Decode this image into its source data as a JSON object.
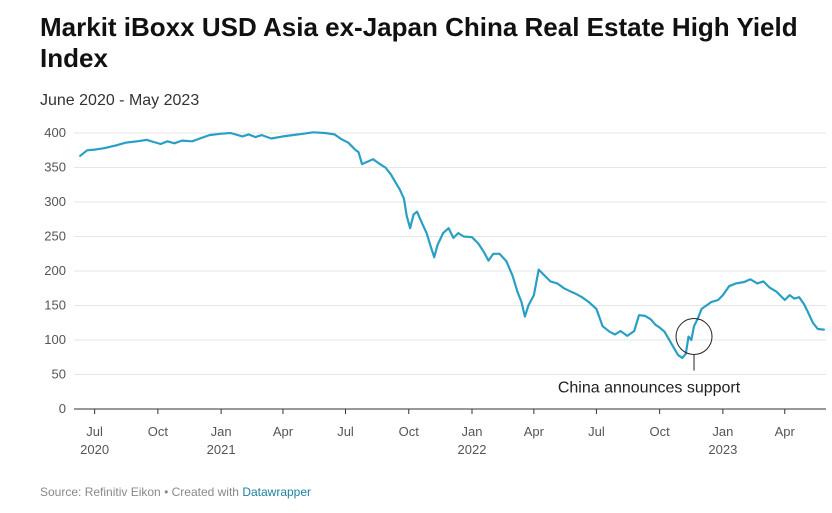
{
  "header": {
    "title": "Markit iBoxx USD Asia ex-Japan China Real Estate High Yield Index",
    "subtitle": "June 2020 - May 2023"
  },
  "footer": {
    "source": "Source: Refinitiv Eikon",
    "separator": " • ",
    "created_with": "Created with ",
    "tool": "Datawrapper"
  },
  "colors": {
    "line": "#2a9fc5",
    "grid": "#e6e6e6",
    "axis": "#333333",
    "annotation": "#222222"
  },
  "chart_data": {
    "type": "line",
    "title": "Markit iBoxx USD Asia ex-Japan China Real Estate High Yield Index",
    "subtitle": "June 2020 - May 2023",
    "xlabel": "",
    "ylabel": "",
    "ylim": [
      0,
      400
    ],
    "xlim": [
      "2020-06-01",
      "2023-05-31"
    ],
    "yticks": [
      0,
      50,
      100,
      150,
      200,
      250,
      300,
      350,
      400
    ],
    "grid": true,
    "xticks": [
      {
        "date": "2020-07-01",
        "label": "Jul",
        "year": "2020"
      },
      {
        "date": "2020-10-01",
        "label": "Oct",
        "year": ""
      },
      {
        "date": "2021-01-01",
        "label": "Jan",
        "year": "2021"
      },
      {
        "date": "2021-04-01",
        "label": "Apr",
        "year": ""
      },
      {
        "date": "2021-07-01",
        "label": "Jul",
        "year": ""
      },
      {
        "date": "2021-10-01",
        "label": "Oct",
        "year": ""
      },
      {
        "date": "2022-01-01",
        "label": "Jan",
        "year": "2022"
      },
      {
        "date": "2022-04-01",
        "label": "Apr",
        "year": ""
      },
      {
        "date": "2022-07-01",
        "label": "Jul",
        "year": ""
      },
      {
        "date": "2022-10-01",
        "label": "Oct",
        "year": ""
      },
      {
        "date": "2023-01-01",
        "label": "Jan",
        "year": "2023"
      },
      {
        "date": "2023-04-01",
        "label": "Apr",
        "year": ""
      }
    ],
    "series": [
      {
        "points": [
          [
            "2020-06-10",
            367
          ],
          [
            "2020-06-20",
            375
          ],
          [
            "2020-07-01",
            376
          ],
          [
            "2020-07-15",
            378
          ],
          [
            "2020-08-01",
            382
          ],
          [
            "2020-08-15",
            386
          ],
          [
            "2020-09-01",
            388
          ],
          [
            "2020-09-15",
            390
          ],
          [
            "2020-09-25",
            387
          ],
          [
            "2020-10-05",
            384
          ],
          [
            "2020-10-15",
            388
          ],
          [
            "2020-10-25",
            385
          ],
          [
            "2020-11-05",
            389
          ],
          [
            "2020-11-20",
            388
          ],
          [
            "2020-12-01",
            392
          ],
          [
            "2020-12-15",
            397
          ],
          [
            "2021-01-01",
            399
          ],
          [
            "2021-01-15",
            400
          ],
          [
            "2021-02-01",
            395
          ],
          [
            "2021-02-10",
            398
          ],
          [
            "2021-02-20",
            394
          ],
          [
            "2021-03-01",
            397
          ],
          [
            "2021-03-15",
            392
          ],
          [
            "2021-04-01",
            395
          ],
          [
            "2021-04-15",
            397
          ],
          [
            "2021-05-01",
            399
          ],
          [
            "2021-05-15",
            401
          ],
          [
            "2021-06-01",
            400
          ],
          [
            "2021-06-15",
            398
          ],
          [
            "2021-06-25",
            391
          ],
          [
            "2021-07-05",
            386
          ],
          [
            "2021-07-15",
            376
          ],
          [
            "2021-07-20",
            372
          ],
          [
            "2021-07-25",
            355
          ],
          [
            "2021-08-01",
            358
          ],
          [
            "2021-08-10",
            362
          ],
          [
            "2021-08-20",
            355
          ],
          [
            "2021-08-28",
            350
          ],
          [
            "2021-09-05",
            340
          ],
          [
            "2021-09-12",
            328
          ],
          [
            "2021-09-18",
            318
          ],
          [
            "2021-09-24",
            305
          ],
          [
            "2021-09-28",
            280
          ],
          [
            "2021-10-03",
            262
          ],
          [
            "2021-10-08",
            282
          ],
          [
            "2021-10-13",
            286
          ],
          [
            "2021-10-20",
            270
          ],
          [
            "2021-10-27",
            255
          ],
          [
            "2021-11-02",
            235
          ],
          [
            "2021-11-07",
            220
          ],
          [
            "2021-11-12",
            238
          ],
          [
            "2021-11-20",
            255
          ],
          [
            "2021-11-28",
            262
          ],
          [
            "2021-12-05",
            248
          ],
          [
            "2021-12-12",
            255
          ],
          [
            "2021-12-20",
            250
          ],
          [
            "2022-01-01",
            249
          ],
          [
            "2022-01-10",
            240
          ],
          [
            "2022-01-18",
            228
          ],
          [
            "2022-01-25",
            215
          ],
          [
            "2022-02-01",
            225
          ],
          [
            "2022-02-10",
            225
          ],
          [
            "2022-02-20",
            214
          ],
          [
            "2022-03-01",
            193
          ],
          [
            "2022-03-08",
            170
          ],
          [
            "2022-03-14",
            155
          ],
          [
            "2022-03-19",
            134
          ],
          [
            "2022-03-24",
            150
          ],
          [
            "2022-04-01",
            165
          ],
          [
            "2022-04-08",
            202
          ],
          [
            "2022-04-15",
            195
          ],
          [
            "2022-04-25",
            185
          ],
          [
            "2022-05-05",
            182
          ],
          [
            "2022-05-15",
            175
          ],
          [
            "2022-05-25",
            170
          ],
          [
            "2022-06-01",
            167
          ],
          [
            "2022-06-10",
            162
          ],
          [
            "2022-06-20",
            155
          ],
          [
            "2022-07-01",
            145
          ],
          [
            "2022-07-10",
            120
          ],
          [
            "2022-07-20",
            112
          ],
          [
            "2022-07-28",
            108
          ],
          [
            "2022-08-05",
            113
          ],
          [
            "2022-08-15",
            106
          ],
          [
            "2022-08-25",
            113
          ],
          [
            "2022-09-01",
            136
          ],
          [
            "2022-09-10",
            135
          ],
          [
            "2022-09-18",
            130
          ],
          [
            "2022-09-25",
            122
          ],
          [
            "2022-10-01",
            118
          ],
          [
            "2022-10-08",
            112
          ],
          [
            "2022-10-15",
            100
          ],
          [
            "2022-10-22",
            88
          ],
          [
            "2022-10-28",
            78
          ],
          [
            "2022-11-03",
            74
          ],
          [
            "2022-11-08",
            80
          ],
          [
            "2022-11-12",
            105
          ],
          [
            "2022-11-16",
            100
          ],
          [
            "2022-11-20",
            120
          ],
          [
            "2022-11-25",
            130
          ],
          [
            "2022-12-01",
            145
          ],
          [
            "2022-12-08",
            150
          ],
          [
            "2022-12-15",
            155
          ],
          [
            "2022-12-25",
            158
          ],
          [
            "2023-01-01",
            165
          ],
          [
            "2023-01-10",
            178
          ],
          [
            "2023-01-20",
            182
          ],
          [
            "2023-02-01",
            184
          ],
          [
            "2023-02-10",
            188
          ],
          [
            "2023-02-20",
            182
          ],
          [
            "2023-03-01",
            185
          ],
          [
            "2023-03-10",
            176
          ],
          [
            "2023-03-20",
            170
          ],
          [
            "2023-03-27",
            163
          ],
          [
            "2023-04-01",
            158
          ],
          [
            "2023-04-08",
            165
          ],
          [
            "2023-04-15",
            160
          ],
          [
            "2023-04-22",
            162
          ],
          [
            "2023-04-29",
            152
          ],
          [
            "2023-05-05",
            140
          ],
          [
            "2023-05-12",
            125
          ],
          [
            "2023-05-19",
            116
          ],
          [
            "2023-05-28",
            115
          ]
        ]
      }
    ],
    "annotations": [
      {
        "date": "2022-11-20",
        "value": 105,
        "text": "China announces support"
      }
    ]
  }
}
